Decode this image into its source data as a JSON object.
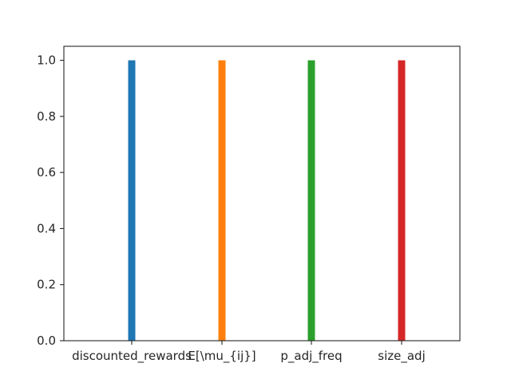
{
  "chart_data": {
    "type": "bar",
    "categories": [
      "discounted_rewards",
      "E[\\mu_{ij}]",
      "p_adj_freq",
      "size_adj"
    ],
    "values": [
      1.0,
      1.0,
      1.0,
      1.0
    ],
    "colors": [
      "#1f77b4",
      "#ff7f0e",
      "#2ca02c",
      "#d62728"
    ],
    "y_ticks": [
      "0.0",
      "0.2",
      "0.4",
      "0.6",
      "0.8",
      "1.0"
    ],
    "ylim": [
      0,
      1.05
    ],
    "title": "",
    "xlabel": "",
    "ylabel": "",
    "grid": false,
    "legend": "none"
  }
}
